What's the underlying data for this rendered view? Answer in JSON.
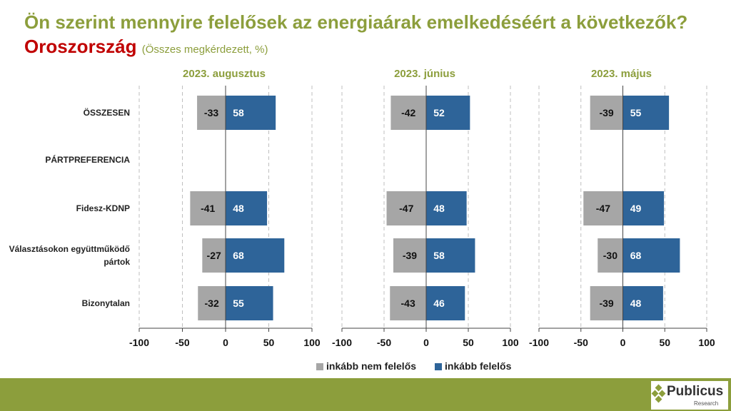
{
  "title": {
    "main": "Ön szerint mennyire felelősek az energiaárak emelkedéséért a következők?",
    "country": "Oroszország",
    "subtitle": "(Összes megkérdezett, %)"
  },
  "colors": {
    "negative": "#a6a6a6",
    "positive": "#2e6499",
    "title": "#8c9e3c",
    "accent": "#c00000",
    "footer": "#8c9e3c"
  },
  "legend": {
    "negative": "inkább nem felelős",
    "positive": "inkább felelős"
  },
  "logo": {
    "name": "Publicus",
    "sub": "Research"
  },
  "chart_data": {
    "type": "bar",
    "orientation": "horizontal",
    "stacked": "diverging",
    "categories": [
      "ÖSSZESEN",
      "PÁRTPREFERENCIA",
      "Fidesz-KDNP",
      "Választásokon együttműködő pártok",
      "Bizonytalan"
    ],
    "category_lines": [
      [
        "ÖSSZESEN"
      ],
      [
        "PÁRTPREFERENCIA"
      ],
      [
        "Fidesz-KDNP"
      ],
      [
        "Választásokon együttműködő",
        "pártok"
      ],
      [
        "Bizonytalan"
      ]
    ],
    "xlim": [
      -100,
      100
    ],
    "xticks": [
      -100,
      -50,
      0,
      50,
      100
    ],
    "xtick_labels": [
      "-100",
      "-50",
      "0",
      "50",
      "100"
    ],
    "panels": [
      {
        "title": "2023. augusztus",
        "series": [
          {
            "name": "inkább nem felelős",
            "values": [
              -33,
              null,
              -41,
              -27,
              -32
            ]
          },
          {
            "name": "inkább felelős",
            "values": [
              58,
              null,
              48,
              68,
              55
            ]
          }
        ]
      },
      {
        "title": "2023. június",
        "series": [
          {
            "name": "inkább nem felelős",
            "values": [
              -42,
              null,
              -47,
              -39,
              -43
            ]
          },
          {
            "name": "inkább felelős",
            "values": [
              52,
              null,
              48,
              58,
              46
            ]
          }
        ]
      },
      {
        "title": "2023. május",
        "series": [
          {
            "name": "inkább nem felelős",
            "values": [
              -39,
              null,
              -47,
              -30,
              -39
            ]
          },
          {
            "name": "inkább felelős",
            "values": [
              55,
              null,
              49,
              68,
              48
            ]
          }
        ]
      }
    ]
  }
}
